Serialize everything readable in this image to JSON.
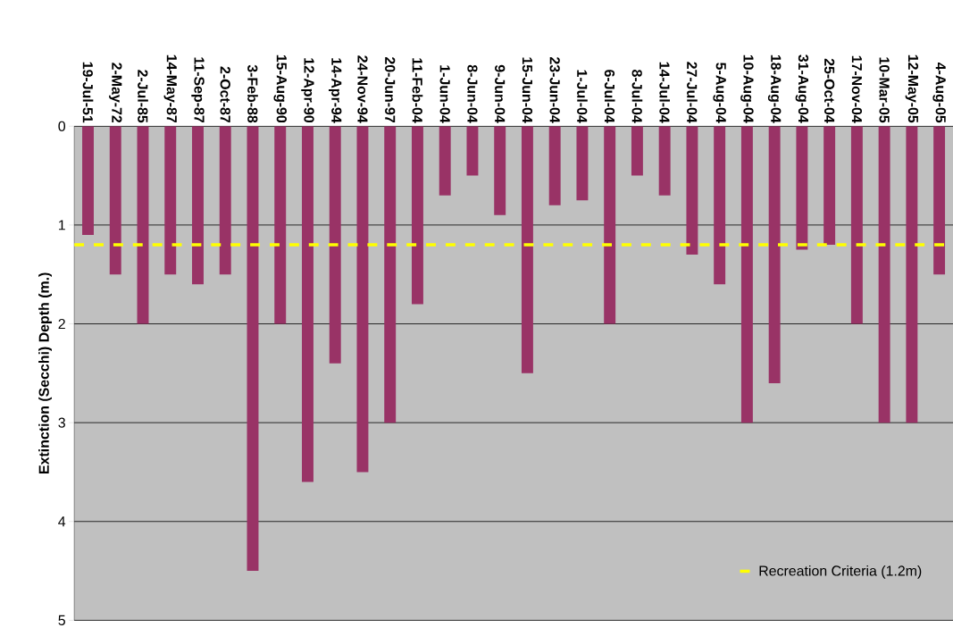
{
  "chart_data": {
    "type": "bar",
    "ylabel": "Extinction (Secchi) Depth (m.)",
    "categories": [
      "19-Jul-51",
      "2-May-72",
      "2-Jul-85",
      "14-May-87",
      "11-Sep-87",
      "2-Oct-87",
      "3-Feb-88",
      "15-Aug-90",
      "12-Apr-90",
      "14-Apr-94",
      "24-Nov-94",
      "20-Jun-97",
      "11-Feb-04",
      "1-Jun-04",
      "8-Jun-04",
      "9-Jun-04",
      "15-Jun-04",
      "23-Jun-04",
      "1-Jul-04",
      "6-Jul-04",
      "8-Jul-04",
      "14-Jul-04",
      "27-Jul-04",
      "5-Aug-04",
      "10-Aug-04",
      "18-Aug-04",
      "31-Aug-04",
      "25-Oct-04",
      "17-Nov-04",
      "10-Mar-05",
      "12-May-05",
      "4-Aug-05"
    ],
    "values": [
      1.1,
      1.5,
      2.0,
      1.5,
      1.6,
      1.5,
      4.5,
      2.0,
      3.6,
      2.4,
      3.5,
      3.0,
      1.8,
      0.7,
      0.5,
      0.9,
      2.5,
      0.8,
      0.75,
      2.0,
      0.5,
      0.7,
      1.3,
      1.6,
      3.0,
      2.6,
      1.25,
      1.2,
      2.0,
      3.0,
      3.0,
      1.5
    ],
    "color": "#993366",
    "ylim": [
      5,
      0
    ],
    "yticks": [
      0,
      1,
      2,
      3,
      4,
      5
    ],
    "grid": "y",
    "legend": "bottom right",
    "ref_lines": [
      {
        "axis": "y",
        "value": 1.2,
        "label": "Recreation Criteria (1.2m)",
        "color": "#ffff00",
        "line_style": "dashed"
      }
    ]
  }
}
